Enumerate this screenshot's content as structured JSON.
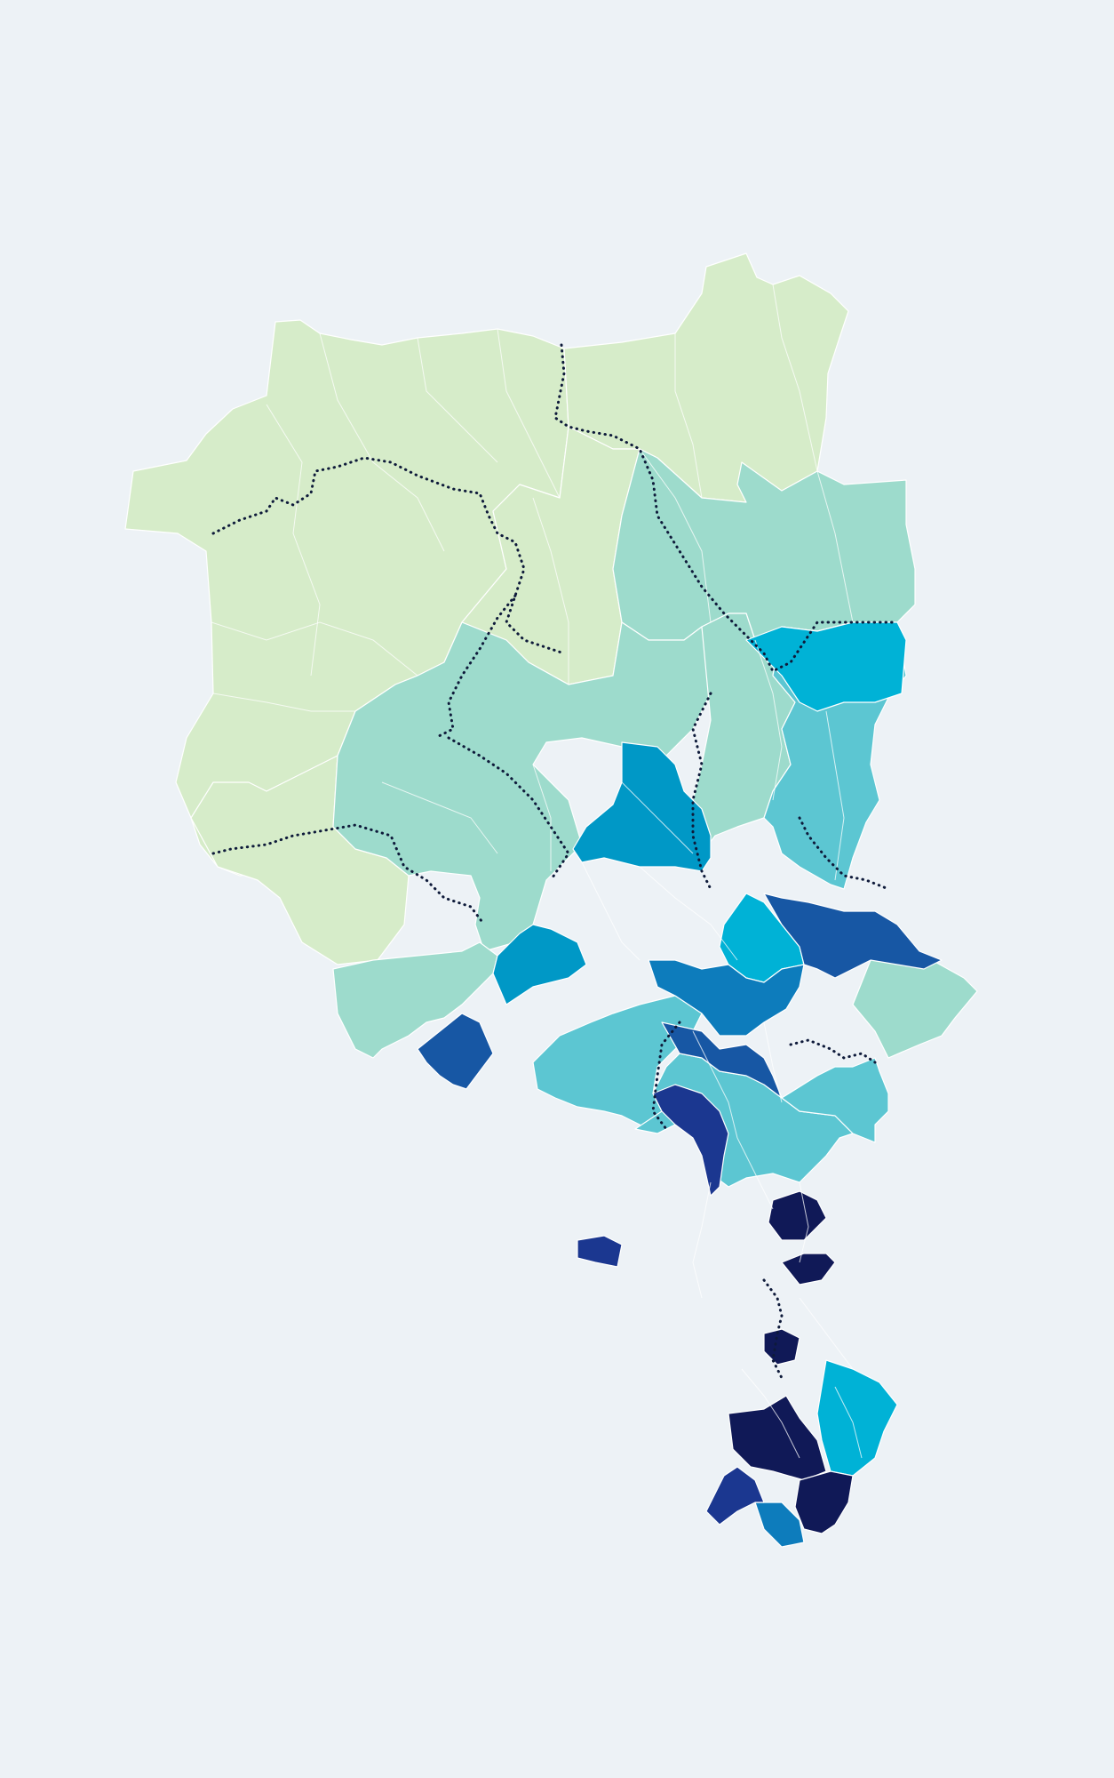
{
  "map": {
    "background": "#edf2f6",
    "palette": {
      "class_1": "#d6ecc9",
      "class_2": "#9ddbcc",
      "class_3": "#5cc6d2",
      "class_4": "#00b2d6",
      "class_5": "#0098c6",
      "class_6": "#0d7cbc",
      "class_7": "#1757a4",
      "class_8": "#1b3790",
      "class_9": "#101957"
    },
    "district_border_color": "#0e1a3a",
    "municipal_border_color": "#ffffff"
  }
}
